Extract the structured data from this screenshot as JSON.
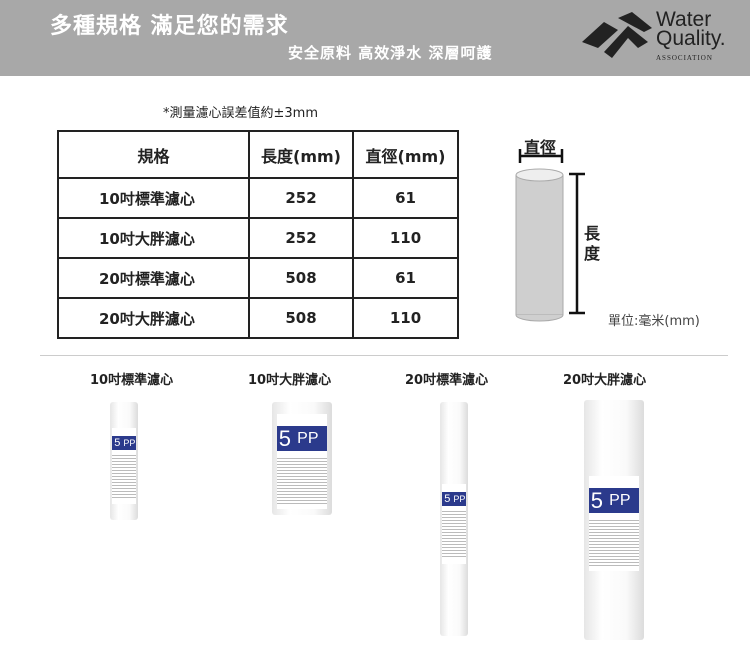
{
  "header": {
    "title": "多種規格 滿足您的需求",
    "subtitle": "安全原料 高效淨水 深層呵護",
    "logo": {
      "line1": "Water",
      "line2": "Quality.",
      "line3": "ASSOCIATION"
    }
  },
  "note": "*測量濾心誤差值約±3mm",
  "table": {
    "headers": [
      "規格",
      "長度(mm)",
      "直徑(mm)"
    ],
    "rows": [
      [
        "10吋標準濾心",
        "252",
        "61"
      ],
      [
        "10吋大胖濾心",
        "252",
        "110"
      ],
      [
        "20吋標準濾心",
        "508",
        "61"
      ],
      [
        "20吋大胖濾心",
        "508",
        "110"
      ]
    ]
  },
  "diagram": {
    "diameter_label": "直徑",
    "length_label": "長度",
    "unit": "單位:毫米(mm)"
  },
  "products": [
    {
      "label": "10吋標準濾心",
      "badge_num": "5",
      "badge_text": "PP"
    },
    {
      "label": "10吋大胖濾心",
      "badge_num": "5",
      "badge_text": "PP"
    },
    {
      "label": "20吋標準濾心",
      "badge_num": "5",
      "badge_text": "PP"
    },
    {
      "label": "20吋大胖濾心",
      "badge_num": "5",
      "badge_text": "PP"
    }
  ],
  "colors": {
    "header_bg": "#a8a8a8",
    "label_blue": "#2b3a8c"
  }
}
